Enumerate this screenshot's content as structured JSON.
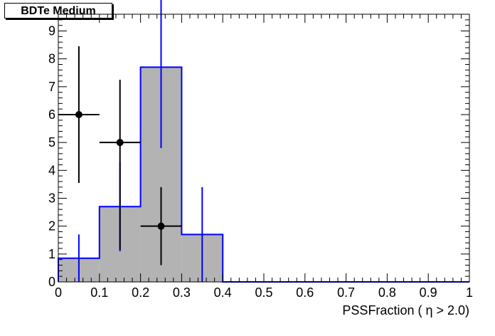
{
  "chart_data": {
    "type": "histogram",
    "title": "BDTe Medium",
    "xlabel": "PSSFraction ( η > 2.0)",
    "ylabel": "",
    "xlim": [
      0,
      1
    ],
    "ylim": [
      0,
      9.6
    ],
    "x_ticks": [
      "0",
      "0.1",
      "0.2",
      "0.3",
      "0.4",
      "0.5",
      "0.6",
      "0.7",
      "0.8",
      "0.9",
      "1"
    ],
    "y_ticks": [
      "0",
      "1",
      "2",
      "3",
      "4",
      "5",
      "6",
      "7",
      "8",
      "9"
    ],
    "grid": false,
    "series": [
      {
        "kind": "filled-step-histogram",
        "color": "#0000ff",
        "fill": "#b3b3b3",
        "bin_edges": [
          0,
          0.1,
          0.2,
          0.3,
          0.4,
          0.5,
          0.6,
          0.7,
          0.8,
          0.9,
          1.0
        ],
        "values": [
          0.85,
          2.7,
          7.7,
          1.7,
          0,
          0,
          0,
          0,
          0,
          0
        ],
        "errors": [
          0.85,
          1.6,
          2.9,
          1.7,
          0,
          0,
          0,
          0,
          0,
          0
        ]
      },
      {
        "kind": "points-with-errors",
        "color": "#000000",
        "x": [
          0.05,
          0.15,
          0.25
        ],
        "y": [
          6,
          5,
          2
        ],
        "x_err": [
          0.05,
          0.05,
          0.05
        ],
        "y_err_low": [
          2.45,
          3.85,
          1.4
        ],
        "y_err_high": [
          2.45,
          2.25,
          1.4
        ]
      }
    ]
  }
}
